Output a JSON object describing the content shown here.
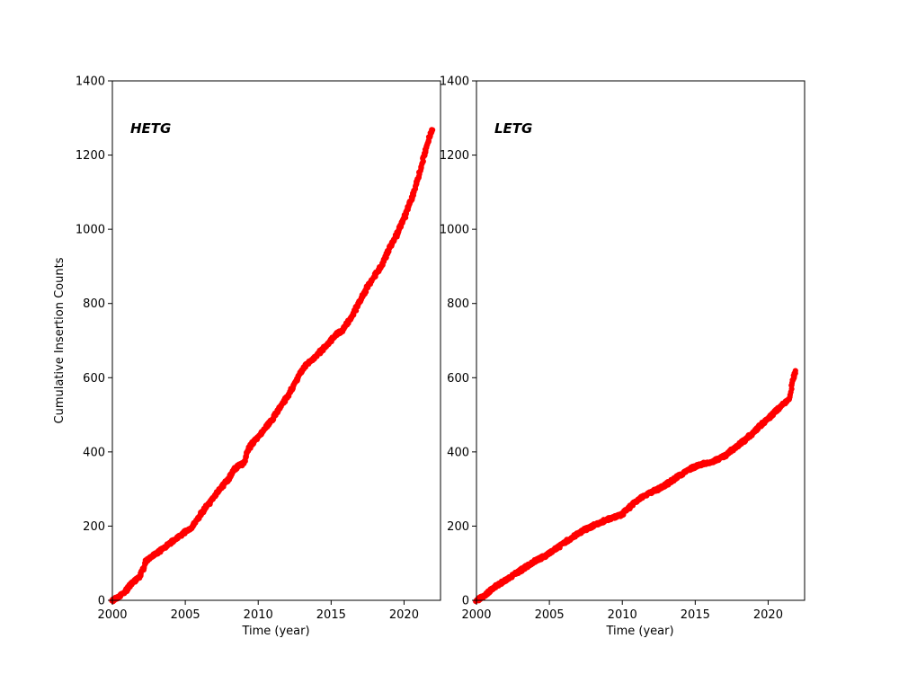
{
  "figure": {
    "background": "#ffffff",
    "text_color": "#000000",
    "axis_color": "#000000"
  },
  "chart_data": [
    {
      "type": "scatter",
      "label": "HETG",
      "annotation": {
        "text": "HETG"
      },
      "xlabel": "Time (year)",
      "ylabel": "Cumulative Insertion Counts",
      "xlim": [
        2000,
        2022.5
      ],
      "ylim": [
        0,
        1400
      ],
      "xticks": [
        2000,
        2005,
        2010,
        2015,
        2020
      ],
      "yticks": [
        0,
        200,
        400,
        600,
        800,
        1000,
        1200,
        1400
      ],
      "grid": false,
      "marker_color": "#ff0000",
      "marker_radius": 3.1,
      "keyframes": [
        [
          2000.0,
          0
        ],
        [
          2000.3,
          6
        ],
        [
          2000.8,
          20
        ],
        [
          2001.3,
          45
        ],
        [
          2001.8,
          60
        ],
        [
          2002.0,
          75
        ],
        [
          2002.3,
          105
        ],
        [
          2002.6,
          115
        ],
        [
          2003.0,
          125
        ],
        [
          2003.5,
          140
        ],
        [
          2004.0,
          155
        ],
        [
          2004.5,
          170
        ],
        [
          2005.0,
          185
        ],
        [
          2005.4,
          196
        ],
        [
          2005.8,
          215
        ],
        [
          2006.2,
          240
        ],
        [
          2006.6,
          260
        ],
        [
          2007.0,
          280
        ],
        [
          2007.5,
          305
        ],
        [
          2008.0,
          330
        ],
        [
          2008.3,
          350
        ],
        [
          2008.6,
          362
        ],
        [
          2009.0,
          368
        ],
        [
          2009.2,
          395
        ],
        [
          2009.5,
          420
        ],
        [
          2010.0,
          440
        ],
        [
          2010.5,
          465
        ],
        [
          2011.0,
          490
        ],
        [
          2011.5,
          520
        ],
        [
          2012.0,
          550
        ],
        [
          2012.5,
          585
        ],
        [
          2013.0,
          620
        ],
        [
          2013.3,
          635
        ],
        [
          2013.7,
          648
        ],
        [
          2014.0,
          660
        ],
        [
          2014.5,
          680
        ],
        [
          2015.0,
          700
        ],
        [
          2015.3,
          715
        ],
        [
          2015.7,
          725
        ],
        [
          2016.0,
          740
        ],
        [
          2016.5,
          770
        ],
        [
          2017.0,
          810
        ],
        [
          2017.5,
          845
        ],
        [
          2018.0,
          875
        ],
        [
          2018.5,
          905
        ],
        [
          2019.0,
          950
        ],
        [
          2019.5,
          985
        ],
        [
          2020.0,
          1030
        ],
        [
          2020.5,
          1080
        ],
        [
          2021.0,
          1140
        ],
        [
          2021.3,
          1190
        ],
        [
          2021.6,
          1230
        ],
        [
          2021.8,
          1255
        ],
        [
          2021.95,
          1270
        ]
      ]
    },
    {
      "type": "scatter",
      "label": "LETG",
      "annotation": {
        "text": "LETG"
      },
      "xlabel": "Time (year)",
      "ylabel": "",
      "xlim": [
        2000,
        2022.5
      ],
      "ylim": [
        0,
        1400
      ],
      "xticks": [
        2000,
        2005,
        2010,
        2015,
        2020
      ],
      "yticks": [
        0,
        200,
        400,
        600,
        800,
        1000,
        1200,
        1400
      ],
      "grid": false,
      "marker_color": "#ff0000",
      "marker_radius": 3.1,
      "keyframes": [
        [
          2000.0,
          0
        ],
        [
          2000.5,
          10
        ],
        [
          2001.0,
          30
        ],
        [
          2001.5,
          42
        ],
        [
          2002.0,
          55
        ],
        [
          2002.5,
          68
        ],
        [
          2003.0,
          80
        ],
        [
          2003.5,
          92
        ],
        [
          2004.0,
          105
        ],
        [
          2004.5,
          115
        ],
        [
          2005.0,
          127
        ],
        [
          2005.5,
          140
        ],
        [
          2006.0,
          155
        ],
        [
          2006.5,
          168
        ],
        [
          2007.0,
          180
        ],
        [
          2007.5,
          192
        ],
        [
          2008.0,
          200
        ],
        [
          2008.5,
          210
        ],
        [
          2009.0,
          218
        ],
        [
          2009.5,
          225
        ],
        [
          2010.0,
          232
        ],
        [
          2010.3,
          245
        ],
        [
          2010.7,
          258
        ],
        [
          2011.0,
          268
        ],
        [
          2011.5,
          280
        ],
        [
          2012.0,
          292
        ],
        [
          2012.5,
          300
        ],
        [
          2013.0,
          312
        ],
        [
          2013.5,
          325
        ],
        [
          2014.0,
          338
        ],
        [
          2014.5,
          350
        ],
        [
          2015.0,
          360
        ],
        [
          2015.5,
          367
        ],
        [
          2016.0,
          372
        ],
        [
          2016.5,
          380
        ],
        [
          2017.0,
          388
        ],
        [
          2017.5,
          405
        ],
        [
          2018.0,
          420
        ],
        [
          2018.5,
          435
        ],
        [
          2019.0,
          452
        ],
        [
          2019.5,
          472
        ],
        [
          2020.0,
          490
        ],
        [
          2020.5,
          510
        ],
        [
          2021.0,
          528
        ],
        [
          2021.3,
          538
        ],
        [
          2021.5,
          545
        ],
        [
          2021.6,
          580
        ],
        [
          2021.75,
          600
        ],
        [
          2021.9,
          620
        ]
      ]
    }
  ]
}
